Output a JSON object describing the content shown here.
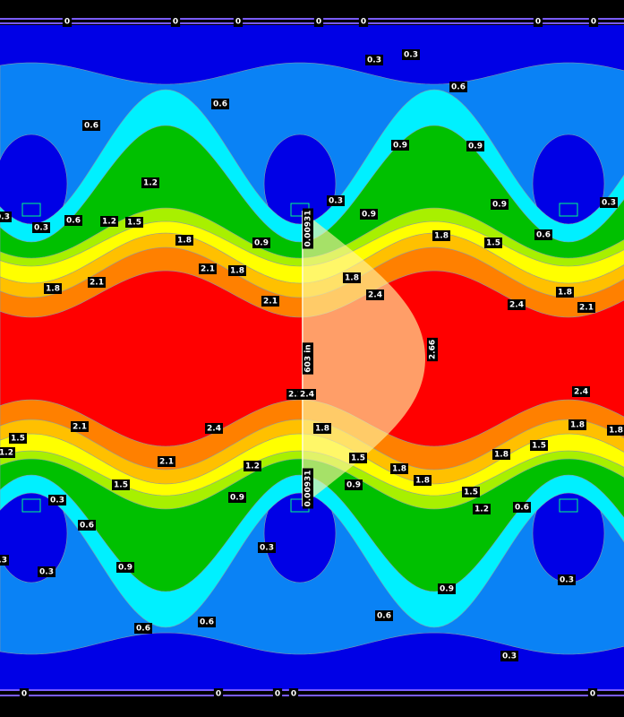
{
  "boundary_top_labels": [
    "0",
    "0",
    "0",
    "0",
    "0",
    "0",
    "0"
  ],
  "boundary_bottom_labels": [
    "0",
    "0",
    "0",
    "0",
    "0"
  ],
  "contour_labels": [
    "0.3",
    "0.3",
    "0.6",
    "0.6",
    "0.6",
    "0.9",
    "0.9",
    "1.2",
    "0.3",
    "0.3",
    "0.6",
    "1.2",
    "1.5",
    "0.3",
    "0.9",
    "0.9",
    "0.3",
    "1.8",
    "0.9",
    "1.8",
    "1.5",
    "0.6",
    "2.1",
    "1.8",
    "2.1",
    "1.8",
    "2.1",
    "1.8",
    "2.4",
    "2.1",
    "2.4",
    "2.1",
    "2.4",
    "1.8",
    "1.8",
    "1.5",
    "1.2",
    "1.5",
    "1.8",
    "2.1",
    "1.2",
    "1.5",
    "1.8",
    "1.8",
    "1.5",
    "0.9",
    "1.5",
    "0.3",
    "0.9",
    "0.6",
    "1.2",
    "0.6",
    "0.3",
    "0.3",
    "0.3",
    "0.9",
    "0.3",
    "0.9",
    "0.6",
    "0.6",
    "0.6",
    "0.3",
    "2.1",
    "2.4",
    "1.8",
    "2.4",
    "1.8"
  ],
  "profile": {
    "edge_top": "0.00931",
    "center": "603 in",
    "edge_bottom": "0.00931",
    "max": "2.66"
  }
}
